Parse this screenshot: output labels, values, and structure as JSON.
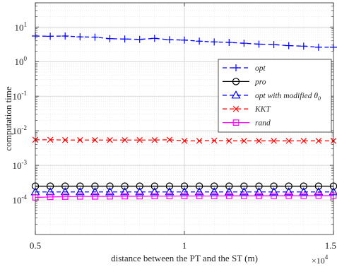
{
  "chart_data": {
    "type": "line",
    "xlabel": "distance between the PT and the ST (m)",
    "ylabel": "computation time",
    "x_multiplier_label": "×10",
    "x_multiplier_exp": "4",
    "xlim": [
      0.5,
      1.5
    ],
    "ylim_log10": [
      -5,
      1.7
    ],
    "yscale": "log",
    "grid": true,
    "legend_position": "upper-right",
    "x_ticks": [
      0.5,
      1,
      1.5
    ],
    "x_tick_labels": [
      "0.5",
      "1",
      "1.5"
    ],
    "y_ticks": [
      {
        "base": "10",
        "exp": "1",
        "log": 1
      },
      {
        "base": "10",
        "exp": "0",
        "log": 0
      },
      {
        "base": "10",
        "exp": "-1",
        "log": -1
      },
      {
        "base": "10",
        "exp": "-2",
        "log": -2
      },
      {
        "base": "10",
        "exp": "-3",
        "log": -3
      },
      {
        "base": "10",
        "exp": "-4",
        "log": -4
      }
    ],
    "x": [
      0.5,
      0.55,
      0.6,
      0.65,
      0.7,
      0.75,
      0.8,
      0.85,
      0.9,
      0.95,
      1.0,
      1.05,
      1.1,
      1.15,
      1.2,
      1.25,
      1.3,
      1.35,
      1.4,
      1.45,
      1.5
    ],
    "series": [
      {
        "name": "opt",
        "marker": "plus",
        "color": "#0000ff",
        "dash": "dashed",
        "values": [
          5.5,
          5.4,
          5.5,
          5.2,
          5.1,
          4.6,
          4.5,
          4.4,
          4.7,
          4.3,
          4.2,
          3.9,
          3.7,
          3.6,
          3.4,
          3.2,
          3.1,
          2.9,
          2.8,
          2.6,
          2.6
        ]
      },
      {
        "name": "pro",
        "marker": "circle",
        "color": "#000000",
        "dash": "solid",
        "values": [
          0.00025,
          0.00025,
          0.00025,
          0.00025,
          0.00025,
          0.00025,
          0.00025,
          0.00025,
          0.00025,
          0.00025,
          0.00025,
          0.00025,
          0.00025,
          0.00025,
          0.00025,
          0.00025,
          0.00025,
          0.00025,
          0.00025,
          0.00025,
          0.00025
        ]
      },
      {
        "name": "opt with modified θ",
        "name_sub": "0",
        "marker": "triangle",
        "color": "#0000ff",
        "dash": "dashed",
        "values": [
          0.00017,
          0.00017,
          0.00017,
          0.00017,
          0.00017,
          0.00017,
          0.00017,
          0.00017,
          0.00017,
          0.00017,
          0.00017,
          0.00017,
          0.00017,
          0.00017,
          0.00017,
          0.00017,
          0.00017,
          0.00017,
          0.00017,
          0.00017,
          0.00017
        ]
      },
      {
        "name": "KKT",
        "marker": "x",
        "color": "#ff0000",
        "dash": "dashed",
        "values": [
          0.0055,
          0.0055,
          0.0054,
          0.0054,
          0.0054,
          0.0054,
          0.0054,
          0.0054,
          0.0054,
          0.0055,
          0.0051,
          0.0051,
          0.0052,
          0.0051,
          0.0051,
          0.0051,
          0.0051,
          0.0051,
          0.0051,
          0.0051,
          0.0051
        ]
      },
      {
        "name": "rand",
        "marker": "square",
        "color": "#ff00ff",
        "dash": "solid",
        "values": [
          0.000118,
          0.000122,
          0.000124,
          0.000126,
          0.000126,
          0.000127,
          0.000128,
          0.000128,
          0.000129,
          0.000129,
          0.00013,
          0.00013,
          0.00013,
          0.000131,
          0.000131,
          0.000131,
          0.000132,
          0.000132,
          0.000132,
          0.000133,
          0.000133
        ]
      }
    ]
  }
}
